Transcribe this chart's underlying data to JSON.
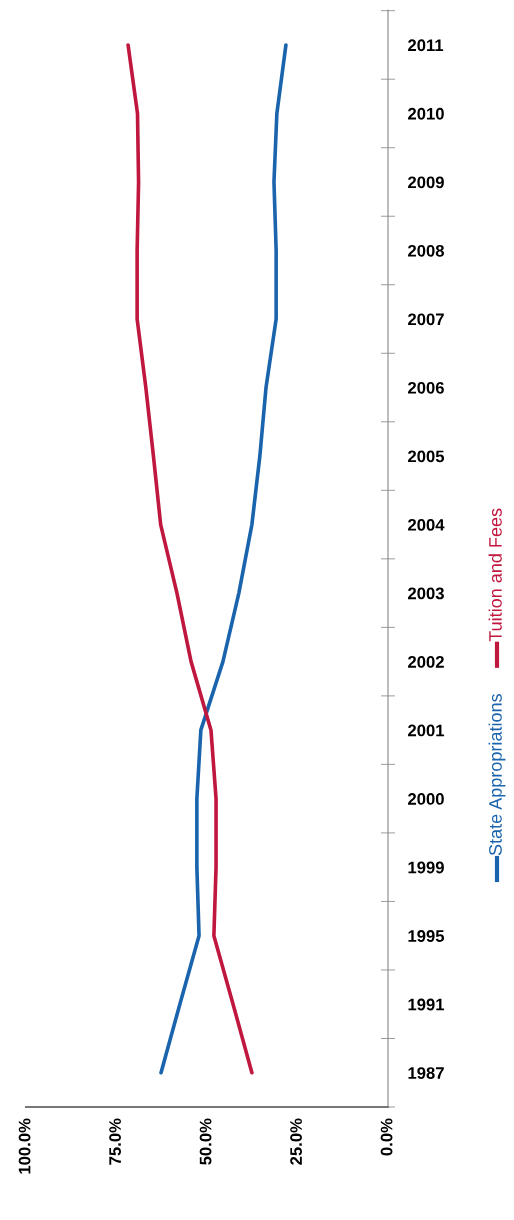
{
  "chart_data": {
    "type": "line",
    "orientation": "horizontal",
    "categories": [
      "2011",
      "2010",
      "2009",
      "2008",
      "2007",
      "2006",
      "2005",
      "2004",
      "2003",
      "2002",
      "2001",
      "2000",
      "1999",
      "1995",
      "1991",
      "1987"
    ],
    "series": [
      {
        "name": "State Appropriations",
        "color": "#1a64ad",
        "values": [
          28.2,
          30.7,
          31.5,
          30.9,
          30.9,
          33.7,
          35.4,
          37.6,
          41.2,
          45.6,
          51.7,
          52.8,
          52.8,
          52.2,
          57.5,
          62.7
        ]
      },
      {
        "name": "Tuition and Fees",
        "color": "#c0173f",
        "values": [
          71.8,
          69.2,
          68.9,
          69.3,
          69.3,
          66.9,
          64.8,
          62.8,
          58.3,
          54.4,
          48.9,
          47.5,
          47.5,
          48.1,
          42.8,
          37.6
        ]
      }
    ],
    "xlim": [
      100,
      0
    ],
    "xticks": [
      {
        "value": 100,
        "label": "100.0%"
      },
      {
        "value": 75,
        "label": "75.0%"
      },
      {
        "value": 50,
        "label": "50.0%"
      },
      {
        "value": 25,
        "label": "25.0%"
      },
      {
        "value": 0,
        "label": "0.0%"
      }
    ],
    "legend": "right",
    "grid": false
  }
}
